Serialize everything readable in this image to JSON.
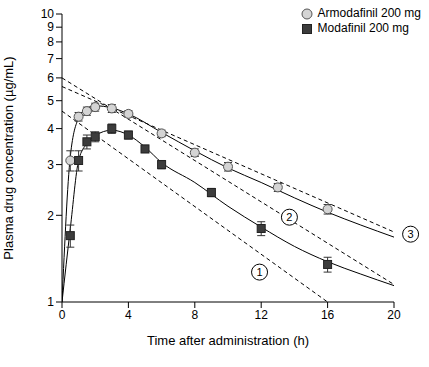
{
  "chart_data": {
    "type": "scatter",
    "x_label": "Time after administration (h)",
    "y_label": "Plasma drug concentration (µg/mL)",
    "log": "y",
    "legend": "top-right",
    "xlim": [
      0,
      20
    ],
    "xticks": [
      0,
      4,
      8,
      12,
      16,
      20
    ],
    "ylim": [
      1,
      10
    ],
    "yticks": [
      1,
      2,
      3,
      4,
      5,
      6,
      7,
      8,
      9,
      10
    ],
    "series": [
      {
        "type": "line",
        "line_style": "solid",
        "color": "#000000",
        "marker": "none",
        "x": [
          0,
          0.5,
          1,
          1.5,
          2,
          3,
          4,
          6,
          8,
          10,
          12,
          14,
          16,
          18,
          20
        ],
        "values": [
          1.0,
          3.2,
          4.35,
          4.7,
          4.8,
          4.72,
          4.5,
          3.88,
          3.35,
          2.92,
          2.6,
          2.3,
          2.05,
          1.85,
          1.68
        ]
      },
      {
        "type": "line",
        "line_style": "solid",
        "color": "#000000",
        "marker": "none",
        "x": [
          0,
          0.5,
          1,
          1.5,
          2,
          3,
          4,
          5,
          6,
          8,
          10,
          12,
          14,
          16,
          18,
          20
        ],
        "values": [
          1.0,
          1.8,
          3.1,
          3.55,
          3.78,
          3.95,
          3.8,
          3.45,
          3.05,
          2.6,
          2.15,
          1.82,
          1.56,
          1.38,
          1.25,
          1.14
        ]
      },
      {
        "type": "line",
        "line_style": "dashed",
        "color": "#000000",
        "marker": "none",
        "x": [
          0,
          16
        ],
        "values": [
          4.6,
          1.0
        ]
      },
      {
        "type": "line",
        "line_style": "dashed",
        "color": "#000000",
        "marker": "none",
        "x": [
          0,
          20
        ],
        "values": [
          6.0,
          1.15
        ]
      },
      {
        "type": "line",
        "line_style": "dashed",
        "color": "#000000",
        "marker": "none",
        "x": [
          0,
          20
        ],
        "values": [
          5.6,
          1.75
        ]
      },
      {
        "name": "Armodafinil 200 mg",
        "type": "scatter",
        "marker": "circle",
        "color": "#d4d4d4",
        "x": [
          0.5,
          1,
          1.5,
          2,
          3,
          4,
          6,
          8,
          10,
          13,
          16
        ],
        "values": [
          3.1,
          4.4,
          4.6,
          4.75,
          4.7,
          4.5,
          3.85,
          3.3,
          2.95,
          2.5,
          2.1
        ],
        "errors": [
          0.25,
          0.15,
          0.15,
          0.15,
          0.15,
          0.12,
          0.1,
          0.1,
          0.1,
          0.08,
          0.08
        ]
      },
      {
        "name": "Modafinil 200 mg",
        "type": "scatter",
        "marker": "square",
        "color": "#3c3c3c",
        "x": [
          0.5,
          1,
          1.5,
          2,
          3,
          4,
          5,
          6,
          9,
          12,
          16
        ],
        "values": [
          1.7,
          3.1,
          3.6,
          3.75,
          4.0,
          3.8,
          3.4,
          3.0,
          2.4,
          1.8,
          1.35
        ],
        "errors": [
          0.15,
          0.25,
          0.2,
          0.15,
          0.15,
          0.12,
          0.1,
          0.1,
          0.08,
          0.1,
          0.08
        ]
      }
    ],
    "annotations": [
      {
        "text": "1",
        "x": 11.9,
        "y": 1.27
      },
      {
        "text": "2",
        "x": 13.7,
        "y": 1.97
      },
      {
        "text": "3",
        "x": 21.0,
        "y": 1.72
      }
    ]
  }
}
